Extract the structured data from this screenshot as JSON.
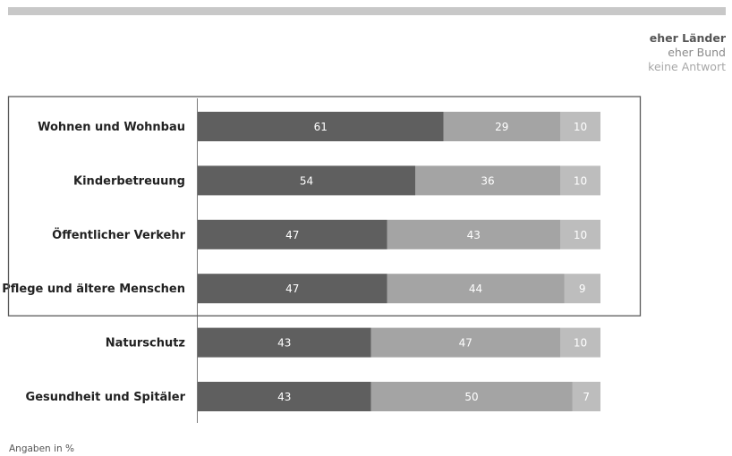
{
  "footnote": "Angaben in %",
  "chart_data": {
    "type": "bar",
    "orientation": "horizontal",
    "stacked": true,
    "categories": [
      "Wohnen und Wohnbau",
      "Kinderbetreuung",
      "Öffentlicher Verkehr",
      "Pflege und ältere Menschen",
      "Naturschutz",
      "Gesundheit und Spitäler"
    ],
    "series": [
      {
        "name": "eher Länder",
        "color": "#5f5f5f",
        "values": [
          61,
          54,
          47,
          47,
          43,
          43
        ]
      },
      {
        "name": "eher Bund",
        "color": "#a4a4a4",
        "values": [
          29,
          36,
          43,
          44,
          47,
          50
        ]
      },
      {
        "name": "keine Antwort",
        "color": "#bdbdbd",
        "values": [
          10,
          10,
          10,
          9,
          10,
          7
        ]
      }
    ],
    "legend_text_colors": [
      "#555555",
      "#8a8a8a",
      "#a8a8a8"
    ],
    "highlighted_categories": [
      0,
      1,
      2,
      3
    ],
    "xlim": [
      0,
      100
    ],
    "legend_position": "top-right",
    "grid": false
  }
}
